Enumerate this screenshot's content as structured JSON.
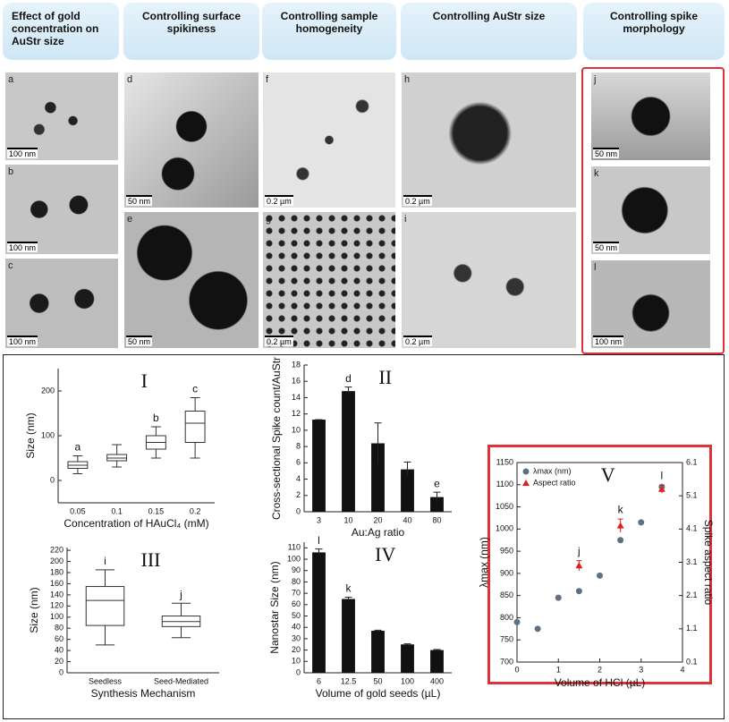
{
  "headers": [
    "Effect of gold concentration on AuStr size",
    "Controlling surface spikiness",
    "Controlling sample homogeneity",
    "Controlling AuStr size",
    "Controlling spike morphology"
  ],
  "panels": [
    {
      "letter": "a",
      "scale": "100 nm"
    },
    {
      "letter": "b",
      "scale": "100 nm"
    },
    {
      "letter": "c",
      "scale": "100 nm"
    },
    {
      "letter": "d",
      "scale": "50 nm"
    },
    {
      "letter": "e",
      "scale": "50 nm"
    },
    {
      "letter": "f",
      "scale": "0.2 µm"
    },
    {
      "letter": "g",
      "scale": "0.2 µm"
    },
    {
      "letter": "h",
      "scale": "0.2 µm"
    },
    {
      "letter": "i",
      "scale": "0.2 µm"
    },
    {
      "letter": "j",
      "scale": "50 nm"
    },
    {
      "letter": "k",
      "scale": "50 nm"
    },
    {
      "letter": "l",
      "scale": "100 nm"
    }
  ],
  "chart_data": [
    {
      "type": "box",
      "title": "I",
      "xlabel": "Concentration of HAuCl₄ (mM)",
      "ylabel": "Size (nm)",
      "categories": [
        "0.05",
        "0.1",
        "0.15",
        "0.2"
      ],
      "min": [
        15,
        30,
        50,
        50
      ],
      "q1": [
        27,
        44,
        70,
        85
      ],
      "median": [
        34,
        50,
        85,
        128
      ],
      "q3": [
        42,
        58,
        100,
        155
      ],
      "max": [
        55,
        80,
        120,
        185
      ],
      "color": "#333333",
      "ylim": [
        -50,
        250
      ],
      "yticks": [
        0,
        100,
        200
      ],
      "annotations": [
        {
          "text": "a",
          "category": "0.05"
        },
        {
          "text": "b",
          "category": "0.15"
        },
        {
          "text": "c",
          "category": "0.2"
        }
      ]
    },
    {
      "type": "bar",
      "title": "II",
      "xlabel": "Au:Ag ratio",
      "ylabel": "Cross-sectional Spike count/AuStr",
      "categories": [
        "3",
        "10",
        "20",
        "40",
        "80"
      ],
      "values": [
        11.3,
        14.8,
        8.4,
        5.2,
        1.8
      ],
      "errors": [
        0,
        0.5,
        2.5,
        0.9,
        0.6
      ],
      "color": "#111111",
      "ylim": [
        0,
        18
      ],
      "yticks": [
        0,
        2,
        4,
        6,
        8,
        10,
        12,
        14,
        16,
        18
      ],
      "annotations": [
        {
          "text": "d",
          "category": "10"
        },
        {
          "text": "e",
          "category": "80"
        }
      ]
    },
    {
      "type": "box",
      "title": "III",
      "xlabel": "Synthesis Mechanism",
      "ylabel": "Size (nm)",
      "categories": [
        "Seedless",
        "Seed-Mediated"
      ],
      "min": [
        50,
        63
      ],
      "q1": [
        85,
        83
      ],
      "median": [
        130,
        92
      ],
      "q3": [
        155,
        102
      ],
      "max": [
        185,
        125
      ],
      "color": "#333333",
      "ylim": [
        0,
        225
      ],
      "yticks": [
        0,
        20,
        40,
        60,
        80,
        100,
        120,
        140,
        160,
        180,
        200,
        220
      ],
      "annotations": [
        {
          "text": "i",
          "category": "Seedless"
        },
        {
          "text": "j",
          "category": "Seed-Mediated"
        }
      ]
    },
    {
      "type": "bar",
      "title": "IV",
      "xlabel": "Volume of gold seeds (µL)",
      "ylabel": "Nanostar Size (nm)",
      "categories": [
        "6",
        "12.5",
        "50",
        "100",
        "400"
      ],
      "values": [
        106,
        65,
        37,
        25,
        20
      ],
      "errors": [
        3,
        1.5,
        0.5,
        0.5,
        0.5
      ],
      "color": "#111111",
      "ylim": [
        0,
        115
      ],
      "yticks": [
        0,
        10,
        20,
        30,
        40,
        50,
        60,
        70,
        80,
        90,
        100,
        110
      ],
      "annotations": [
        {
          "text": "l",
          "category": "6"
        },
        {
          "text": "k",
          "category": "12.5"
        }
      ]
    },
    {
      "type": "scatter",
      "title": "V",
      "xlabel": "Volume of HCl (µL)",
      "ylabel": "λmax (nm)",
      "y2label": "Spike aspect ratio",
      "xlim": [
        0,
        4
      ],
      "xticks": [
        0,
        1,
        2,
        3,
        4
      ],
      "ylim": [
        700,
        1150
      ],
      "yticks": [
        700,
        750,
        800,
        850,
        900,
        950,
        1000,
        1050,
        1100,
        1150
      ],
      "y2lim": [
        0.1,
        6.1
      ],
      "y2ticks": [
        0.1,
        1.1,
        2.1,
        3.1,
        4.1,
        5.1,
        6.1
      ],
      "legend": "top-left",
      "series": [
        {
          "name": "λmax (nm)",
          "color": "#5f7080",
          "x": [
            0,
            0.5,
            1,
            1.5,
            2,
            2.5,
            3,
            3.5
          ],
          "values": [
            790,
            775,
            845,
            860,
            895,
            975,
            1015,
            1095
          ]
        },
        {
          "name": "Aspect ratio",
          "color": "#e02020",
          "axis": "y2",
          "x": [
            1.5,
            2.5,
            3.5
          ],
          "values": [
            3.0,
            4.2,
            5.3
          ],
          "errors": [
            0.15,
            0.2,
            0.12
          ]
        }
      ],
      "annotations": [
        {
          "text": "j",
          "x": 1.5
        },
        {
          "text": "k",
          "x": 2.5
        },
        {
          "text": "l",
          "x": 3.5
        }
      ]
    }
  ]
}
